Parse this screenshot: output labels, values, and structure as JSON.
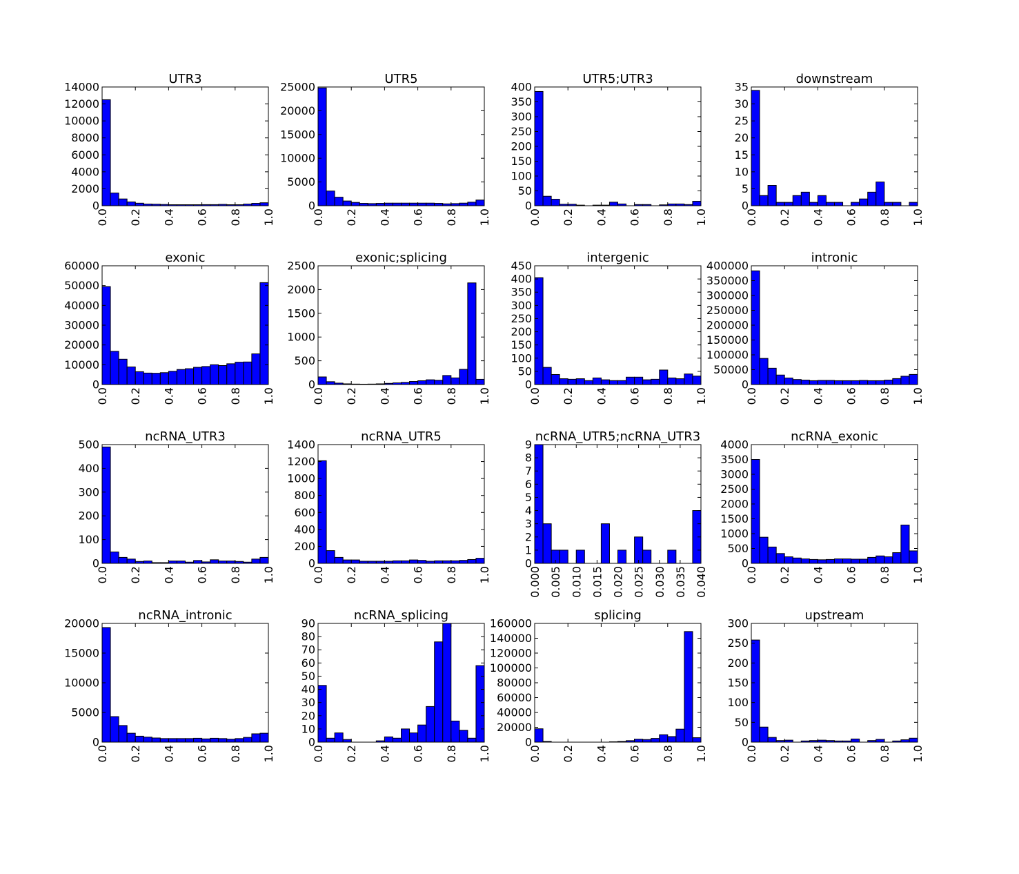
{
  "colors": {
    "bar_fill": "#0000ff",
    "bar_edge": "#000000",
    "axes": "#000000",
    "background": "#ffffff"
  },
  "chart_data": [
    {
      "type": "bar",
      "title": "UTR3",
      "grid": false,
      "xlim": [
        0,
        1
      ],
      "ylim": [
        0,
        14000
      ],
      "xticks": [
        "0.0",
        "0.2",
        "0.4",
        "0.6",
        "0.8",
        "1.0"
      ],
      "yticks": [
        "0",
        "2000",
        "4000",
        "6000",
        "8000",
        "10000",
        "12000",
        "14000"
      ],
      "values": [
        12500,
        1500,
        800,
        450,
        300,
        200,
        180,
        150,
        120,
        120,
        120,
        120,
        130,
        130,
        160,
        120,
        120,
        200,
        280,
        350
      ]
    },
    {
      "type": "bar",
      "title": "UTR5",
      "grid": false,
      "xlim": [
        0,
        1
      ],
      "ylim": [
        0,
        25000
      ],
      "xticks": [
        "0.0",
        "0.2",
        "0.4",
        "0.6",
        "0.8",
        "1.0"
      ],
      "yticks": [
        "0",
        "5000",
        "10000",
        "15000",
        "20000",
        "25000"
      ],
      "values": [
        24800,
        3100,
        1800,
        1000,
        700,
        500,
        450,
        500,
        550,
        550,
        550,
        550,
        550,
        550,
        500,
        400,
        450,
        550,
        750,
        1200
      ]
    },
    {
      "type": "bar",
      "title": "UTR5;UTR3",
      "grid": false,
      "xlim": [
        0,
        1
      ],
      "ylim": [
        0,
        400
      ],
      "xticks": [
        "0.0",
        "0.2",
        "0.4",
        "0.6",
        "0.8",
        "1.0"
      ],
      "yticks": [
        "0",
        "50",
        "100",
        "150",
        "200",
        "250",
        "300",
        "350",
        "400"
      ],
      "values": [
        385,
        32,
        22,
        5,
        5,
        2,
        0,
        2,
        2,
        12,
        6,
        0,
        4,
        4,
        0,
        3,
        6,
        6,
        4,
        15
      ]
    },
    {
      "type": "bar",
      "title": "downstream",
      "grid": false,
      "xlim": [
        0,
        1
      ],
      "ylim": [
        0,
        35
      ],
      "xticks": [
        "0.0",
        "0.2",
        "0.4",
        "0.6",
        "0.8",
        "1.0"
      ],
      "yticks": [
        "0",
        "5",
        "10",
        "15",
        "20",
        "25",
        "30",
        "35"
      ],
      "values": [
        34,
        3,
        6,
        1,
        1,
        3,
        4,
        1,
        3,
        1,
        1,
        0,
        1,
        2,
        4,
        7,
        1,
        1,
        0,
        1
      ]
    },
    {
      "type": "bar",
      "title": "exonic",
      "grid": false,
      "xlim": [
        0,
        1
      ],
      "ylim": [
        0,
        60000
      ],
      "xticks": [
        "0.0",
        "0.2",
        "0.4",
        "0.6",
        "0.8",
        "1.0"
      ],
      "yticks": [
        "0",
        "10000",
        "20000",
        "30000",
        "40000",
        "50000",
        "60000"
      ],
      "values": [
        49500,
        16800,
        12800,
        8900,
        6500,
        5800,
        5700,
        6000,
        6700,
        7600,
        8000,
        8700,
        9100,
        10000,
        9600,
        10500,
        11300,
        11400,
        15500,
        51500
      ]
    },
    {
      "type": "bar",
      "title": "exonic;splicing",
      "grid": false,
      "xlim": [
        0,
        1
      ],
      "ylim": [
        0,
        2500
      ],
      "xticks": [
        "0.0",
        "0.2",
        "0.4",
        "0.6",
        "0.8",
        "1.0"
      ],
      "yticks": [
        "0",
        "500",
        "1000",
        "1500",
        "2000",
        "2500"
      ],
      "values": [
        160,
        60,
        30,
        15,
        10,
        8,
        10,
        15,
        25,
        35,
        45,
        65,
        80,
        100,
        90,
        190,
        140,
        320,
        2140,
        110
      ]
    },
    {
      "type": "bar",
      "title": "intergenic",
      "grid": false,
      "xlim": [
        0,
        1
      ],
      "ylim": [
        0,
        450
      ],
      "xticks": [
        "0.0",
        "0.2",
        "0.4",
        "0.6",
        "0.8",
        "1.0"
      ],
      "yticks": [
        "0",
        "50",
        "100",
        "150",
        "200",
        "250",
        "300",
        "350",
        "400",
        "450"
      ],
      "values": [
        405,
        65,
        38,
        22,
        20,
        22,
        15,
        25,
        18,
        15,
        15,
        28,
        28,
        18,
        20,
        55,
        25,
        22,
        40,
        32
      ]
    },
    {
      "type": "bar",
      "title": "intronic",
      "grid": false,
      "xlim": [
        0,
        1
      ],
      "ylim": [
        0,
        400000
      ],
      "xticks": [
        "0.0",
        "0.2",
        "0.4",
        "0.6",
        "0.8",
        "1.0"
      ],
      "yticks": [
        "0",
        "50000",
        "100000",
        "150000",
        "200000",
        "250000",
        "300000",
        "350000",
        "400000"
      ],
      "values": [
        383000,
        88000,
        55000,
        32000,
        22000,
        17000,
        15000,
        13000,
        14000,
        14000,
        13000,
        13000,
        13000,
        14000,
        13000,
        13000,
        15000,
        20000,
        28000,
        34000
      ]
    },
    {
      "type": "bar",
      "title": "ncRNA_UTR3",
      "grid": false,
      "xlim": [
        0,
        1
      ],
      "ylim": [
        0,
        500
      ],
      "xticks": [
        "0.0",
        "0.2",
        "0.4",
        "0.6",
        "0.8",
        "1.0"
      ],
      "yticks": [
        "0",
        "100",
        "200",
        "300",
        "400",
        "500"
      ],
      "values": [
        490,
        48,
        25,
        18,
        8,
        10,
        3,
        3,
        10,
        10,
        5,
        12,
        6,
        15,
        10,
        10,
        8,
        5,
        18,
        25
      ]
    },
    {
      "type": "bar",
      "title": "ncRNA_UTR5",
      "grid": false,
      "xlim": [
        0,
        1
      ],
      "ylim": [
        0,
        1400
      ],
      "xticks": [
        "0.0",
        "0.2",
        "0.4",
        "0.6",
        "0.8",
        "1.0"
      ],
      "yticks": [
        "0",
        "200",
        "400",
        "600",
        "800",
        "1000",
        "1200",
        "1400"
      ],
      "values": [
        1210,
        150,
        70,
        40,
        40,
        25,
        25,
        25,
        25,
        30,
        30,
        40,
        35,
        25,
        30,
        30,
        30,
        35,
        45,
        60
      ]
    },
    {
      "type": "bar",
      "title": "ncRNA_UTR5;ncRNA_UTR3",
      "grid": false,
      "xlim": [
        0,
        0.04
      ],
      "ylim": [
        0,
        9
      ],
      "xticks": [
        "0.000",
        "0.005",
        "0.010",
        "0.015",
        "0.020",
        "0.025",
        "0.030",
        "0.035",
        "0.040"
      ],
      "yticks": [
        "0",
        "1",
        "2",
        "3",
        "4",
        "5",
        "6",
        "7",
        "8",
        "9"
      ],
      "values": [
        9,
        3,
        1,
        1,
        0,
        1,
        0,
        0,
        3,
        0,
        1,
        0,
        2,
        1,
        0,
        0,
        1,
        0,
        0,
        4
      ]
    },
    {
      "type": "bar",
      "title": "ncRNA_exonic",
      "grid": false,
      "xlim": [
        0,
        1
      ],
      "ylim": [
        0,
        4000
      ],
      "xticks": [
        "0.0",
        "0.2",
        "0.4",
        "0.6",
        "0.8",
        "1.0"
      ],
      "yticks": [
        "0",
        "500",
        "1000",
        "1500",
        "2000",
        "2500",
        "3000",
        "3500",
        "4000"
      ],
      "values": [
        3500,
        880,
        550,
        330,
        220,
        180,
        150,
        130,
        120,
        130,
        150,
        150,
        140,
        140,
        200,
        250,
        220,
        360,
        1290,
        420
      ]
    },
    {
      "type": "bar",
      "title": "ncRNA_intronic",
      "grid": false,
      "xlim": [
        0,
        1
      ],
      "ylim": [
        0,
        20000
      ],
      "xticks": [
        "0.0",
        "0.2",
        "0.4",
        "0.6",
        "0.8",
        "1.0"
      ],
      "yticks": [
        "0",
        "5000",
        "10000",
        "15000",
        "20000"
      ],
      "values": [
        19300,
        4300,
        2800,
        1500,
        1000,
        850,
        700,
        600,
        600,
        600,
        600,
        650,
        550,
        650,
        600,
        500,
        600,
        800,
        1400,
        1500
      ]
    },
    {
      "type": "bar",
      "title": "ncRNA_splicing",
      "grid": false,
      "xlim": [
        0,
        1
      ],
      "ylim": [
        0,
        90
      ],
      "xticks": [
        "0.0",
        "0.2",
        "0.4",
        "0.6",
        "0.8",
        "1.0"
      ],
      "yticks": [
        "0",
        "10",
        "20",
        "30",
        "40",
        "50",
        "60",
        "70",
        "80",
        "90"
      ],
      "values": [
        43,
        3,
        7,
        2,
        0,
        0,
        0,
        1,
        4,
        3,
        10,
        7,
        13,
        27,
        76,
        90,
        16,
        9,
        3,
        58
      ]
    },
    {
      "type": "bar",
      "title": "splicing",
      "grid": false,
      "xlim": [
        0,
        1
      ],
      "ylim": [
        0,
        160000
      ],
      "xticks": [
        "0.0",
        "0.2",
        "0.4",
        "0.6",
        "0.8",
        "1.0"
      ],
      "yticks": [
        "0",
        "20000",
        "40000",
        "60000",
        "80000",
        "100000",
        "120000",
        "140000",
        "160000"
      ],
      "values": [
        18000,
        1000,
        0,
        0,
        0,
        0,
        0,
        0,
        0,
        500,
        1000,
        2000,
        4000,
        3500,
        5000,
        10000,
        7500,
        17500,
        149000,
        6000
      ]
    },
    {
      "type": "bar",
      "title": "upstream",
      "grid": false,
      "xlim": [
        0,
        1
      ],
      "ylim": [
        0,
        300
      ],
      "xticks": [
        "0.0",
        "0.2",
        "0.4",
        "0.6",
        "0.8",
        "1.0"
      ],
      "yticks": [
        "0",
        "50",
        "100",
        "150",
        "200",
        "250",
        "300"
      ],
      "values": [
        258,
        38,
        12,
        4,
        5,
        0,
        3,
        4,
        5,
        4,
        3,
        3,
        8,
        0,
        4,
        7,
        0,
        3,
        6,
        10
      ]
    }
  ]
}
